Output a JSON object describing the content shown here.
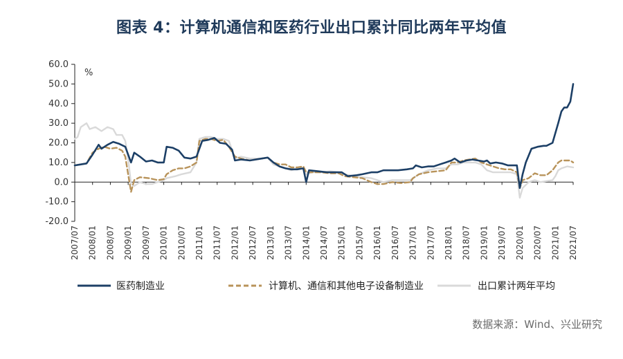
{
  "header": {
    "title": "图表 4：计算机通信和医药行业出口累计同比两年平均值"
  },
  "footer": {
    "source": "数据来源：Wind、兴业研究"
  },
  "chart_data": {
    "type": "line",
    "title": "图表 4：计算机通信和医药行业出口累计同比两年平均值",
    "ylabel": "%",
    "ylim": [
      -20,
      60
    ],
    "yticks": [
      -20,
      -10,
      0,
      10,
      20,
      30,
      40,
      50,
      60
    ],
    "ytick_labels": [
      "-20.0",
      "-10.0",
      "0.0",
      "10.0",
      "20.0",
      "30.0",
      "40.0",
      "50.0",
      "60.0"
    ],
    "xlim": [
      2007.5,
      2021.5
    ],
    "xtick_labels": [
      "2007/07",
      "2008/01",
      "2008/07",
      "2009/01",
      "2009/07",
      "2010/01",
      "2010/07",
      "2011/01",
      "2011/07",
      "2012/01",
      "2012/07",
      "2013/01",
      "2013/07",
      "2014/01",
      "2014/07",
      "2015/01",
      "2015/07",
      "2016/01",
      "2016/07",
      "2017/01",
      "2017/07",
      "2018/01",
      "2018/07",
      "2019/01",
      "2019/07",
      "2020/01",
      "2020/07",
      "2021/01",
      "2021/07"
    ],
    "legend_position": "bottom",
    "series": [
      {
        "name": "医药制造业",
        "color": "#1c3f66",
        "style": "solid",
        "points": [
          [
            2007.5,
            8.5
          ],
          [
            2007.67,
            9
          ],
          [
            2007.83,
            9.5
          ],
          [
            2008.0,
            14
          ],
          [
            2008.17,
            19
          ],
          [
            2008.25,
            17
          ],
          [
            2008.42,
            19
          ],
          [
            2008.58,
            20.5
          ],
          [
            2008.75,
            19.5
          ],
          [
            2008.92,
            18
          ],
          [
            2009.08,
            10
          ],
          [
            2009.17,
            15
          ],
          [
            2009.33,
            13
          ],
          [
            2009.5,
            10.5
          ],
          [
            2009.67,
            11
          ],
          [
            2009.83,
            10
          ],
          [
            2010.0,
            10
          ],
          [
            2010.08,
            18
          ],
          [
            2010.25,
            17.5
          ],
          [
            2010.42,
            16
          ],
          [
            2010.58,
            12.5
          ],
          [
            2010.75,
            12
          ],
          [
            2010.92,
            13
          ],
          [
            2011.08,
            21
          ],
          [
            2011.25,
            21.5
          ],
          [
            2011.42,
            22.5
          ],
          [
            2011.58,
            20
          ],
          [
            2011.75,
            19.5
          ],
          [
            2011.92,
            16.5
          ],
          [
            2012.0,
            11
          ],
          [
            2012.17,
            11.5
          ],
          [
            2012.42,
            11
          ],
          [
            2012.58,
            11.5
          ],
          [
            2012.75,
            12
          ],
          [
            2012.92,
            12.5
          ],
          [
            2013.08,
            10
          ],
          [
            2013.25,
            8
          ],
          [
            2013.42,
            7
          ],
          [
            2013.58,
            6.5
          ],
          [
            2013.75,
            6.5
          ],
          [
            2013.92,
            7
          ],
          [
            2014.0,
            0
          ],
          [
            2014.08,
            6
          ],
          [
            2014.33,
            5.5
          ],
          [
            2014.58,
            5
          ],
          [
            2014.83,
            5
          ],
          [
            2015.0,
            5
          ],
          [
            2015.17,
            3
          ],
          [
            2015.42,
            3.5
          ],
          [
            2015.58,
            4
          ],
          [
            2015.83,
            5
          ],
          [
            2016.0,
            5
          ],
          [
            2016.17,
            6
          ],
          [
            2016.42,
            6
          ],
          [
            2016.58,
            6
          ],
          [
            2016.83,
            6.5
          ],
          [
            2017.0,
            7
          ],
          [
            2017.08,
            8.5
          ],
          [
            2017.25,
            7.5
          ],
          [
            2017.42,
            8
          ],
          [
            2017.58,
            8
          ],
          [
            2017.75,
            9
          ],
          [
            2017.92,
            10
          ],
          [
            2018.08,
            11
          ],
          [
            2018.17,
            12
          ],
          [
            2018.33,
            10
          ],
          [
            2018.5,
            11
          ],
          [
            2018.67,
            11.5
          ],
          [
            2018.83,
            11
          ],
          [
            2019.0,
            10.5
          ],
          [
            2019.08,
            11
          ],
          [
            2019.17,
            9.5
          ],
          [
            2019.33,
            10
          ],
          [
            2019.5,
            9.5
          ],
          [
            2019.67,
            8.5
          ],
          [
            2019.83,
            8.5
          ],
          [
            2019.92,
            8.5
          ],
          [
            2020.0,
            -3
          ],
          [
            2020.08,
            4
          ],
          [
            2020.17,
            10
          ],
          [
            2020.33,
            17
          ],
          [
            2020.5,
            18
          ],
          [
            2020.67,
            18.5
          ],
          [
            2020.75,
            18.5
          ],
          [
            2020.92,
            20
          ],
          [
            2021.08,
            30
          ],
          [
            2021.17,
            36
          ],
          [
            2021.25,
            38
          ],
          [
            2021.33,
            38
          ],
          [
            2021.42,
            41
          ],
          [
            2021.5,
            50
          ]
        ]
      },
      {
        "name": "计算机、通信和其他电子设备制造业",
        "color": "#b8935a",
        "style": "dashed",
        "points": [
          [
            2007.5,
            8.5
          ],
          [
            2007.67,
            9
          ],
          [
            2007.83,
            9.5
          ],
          [
            2008.0,
            15
          ],
          [
            2008.17,
            17
          ],
          [
            2008.33,
            18
          ],
          [
            2008.5,
            17
          ],
          [
            2008.67,
            17.5
          ],
          [
            2008.83,
            16
          ],
          [
            2008.92,
            13
          ],
          [
            2009.0,
            4
          ],
          [
            2009.08,
            -5
          ],
          [
            2009.17,
            1
          ],
          [
            2009.33,
            2.5
          ],
          [
            2009.58,
            2
          ],
          [
            2009.83,
            1
          ],
          [
            2010.0,
            1.5
          ],
          [
            2010.08,
            4
          ],
          [
            2010.25,
            6
          ],
          [
            2010.42,
            7
          ],
          [
            2010.58,
            7
          ],
          [
            2010.75,
            8
          ],
          [
            2010.92,
            10
          ],
          [
            2011.0,
            21
          ],
          [
            2011.17,
            22
          ],
          [
            2011.33,
            22
          ],
          [
            2011.5,
            21
          ],
          [
            2011.67,
            21.5
          ],
          [
            2011.83,
            18
          ],
          [
            2012.0,
            13
          ],
          [
            2012.17,
            12
          ],
          [
            2012.42,
            11
          ],
          [
            2012.58,
            11.5
          ],
          [
            2012.75,
            12
          ],
          [
            2012.92,
            12.5
          ],
          [
            2013.08,
            10
          ],
          [
            2013.25,
            9
          ],
          [
            2013.42,
            9
          ],
          [
            2013.58,
            7.5
          ],
          [
            2013.75,
            7.5
          ],
          [
            2013.92,
            8
          ],
          [
            2014.0,
            5
          ],
          [
            2014.17,
            5
          ],
          [
            2014.42,
            5
          ],
          [
            2014.67,
            4.5
          ],
          [
            2014.92,
            4.5
          ],
          [
            2015.08,
            3
          ],
          [
            2015.33,
            2.5
          ],
          [
            2015.58,
            2
          ],
          [
            2015.83,
            0
          ],
          [
            2016.0,
            -1
          ],
          [
            2016.17,
            -1
          ],
          [
            2016.42,
            0
          ],
          [
            2016.67,
            -0.5
          ],
          [
            2016.92,
            0
          ],
          [
            2017.0,
            2
          ],
          [
            2017.17,
            4
          ],
          [
            2017.42,
            5
          ],
          [
            2017.67,
            5.5
          ],
          [
            2017.92,
            6
          ],
          [
            2018.08,
            10
          ],
          [
            2018.25,
            10
          ],
          [
            2018.42,
            11
          ],
          [
            2018.58,
            11.5
          ],
          [
            2018.75,
            12
          ],
          [
            2018.92,
            10
          ],
          [
            2019.08,
            9
          ],
          [
            2019.25,
            8
          ],
          [
            2019.42,
            7
          ],
          [
            2019.58,
            6.5
          ],
          [
            2019.75,
            6.5
          ],
          [
            2019.92,
            5
          ],
          [
            2020.0,
            -3
          ],
          [
            2020.08,
            1
          ],
          [
            2020.25,
            2
          ],
          [
            2020.42,
            4.5
          ],
          [
            2020.58,
            3.5
          ],
          [
            2020.75,
            3.5
          ],
          [
            2020.92,
            6
          ],
          [
            2021.08,
            10
          ],
          [
            2021.17,
            11
          ],
          [
            2021.33,
            11
          ],
          [
            2021.42,
            11
          ],
          [
            2021.5,
            10
          ]
        ]
      },
      {
        "name": "出口累计两年平均",
        "color": "#d9d9d9",
        "style": "solid",
        "points": [
          [
            2007.5,
            22
          ],
          [
            2007.58,
            23
          ],
          [
            2007.67,
            28
          ],
          [
            2007.83,
            30
          ],
          [
            2007.92,
            27
          ],
          [
            2008.08,
            28
          ],
          [
            2008.25,
            26
          ],
          [
            2008.42,
            28
          ],
          [
            2008.58,
            27
          ],
          [
            2008.67,
            24
          ],
          [
            2008.83,
            24
          ],
          [
            2008.92,
            21
          ],
          [
            2009.0,
            12
          ],
          [
            2009.08,
            -1
          ],
          [
            2009.17,
            -2
          ],
          [
            2009.33,
            0
          ],
          [
            2009.5,
            -1
          ],
          [
            2009.67,
            -1
          ],
          [
            2009.83,
            0
          ],
          [
            2010.0,
            1
          ],
          [
            2010.08,
            2
          ],
          [
            2010.33,
            3
          ],
          [
            2010.5,
            4
          ],
          [
            2010.75,
            5
          ],
          [
            2010.92,
            10
          ],
          [
            2011.0,
            22
          ],
          [
            2011.17,
            23
          ],
          [
            2011.33,
            23
          ],
          [
            2011.5,
            22
          ],
          [
            2011.67,
            22
          ],
          [
            2011.83,
            21
          ],
          [
            2012.0,
            12
          ],
          [
            2012.17,
            13
          ],
          [
            2012.42,
            12
          ],
          [
            2012.58,
            12
          ],
          [
            2012.75,
            12
          ],
          [
            2012.92,
            12.5
          ],
          [
            2013.08,
            9
          ],
          [
            2013.25,
            8
          ],
          [
            2013.42,
            7
          ],
          [
            2013.58,
            6
          ],
          [
            2013.75,
            7
          ],
          [
            2013.92,
            7
          ],
          [
            2014.0,
            4
          ],
          [
            2014.17,
            5
          ],
          [
            2014.42,
            5
          ],
          [
            2014.67,
            5.5
          ],
          [
            2014.92,
            5
          ],
          [
            2015.08,
            4
          ],
          [
            2015.33,
            3
          ],
          [
            2015.58,
            2.5
          ],
          [
            2015.83,
            2
          ],
          [
            2016.0,
            1
          ],
          [
            2016.17,
            0
          ],
          [
            2016.42,
            1
          ],
          [
            2016.67,
            1
          ],
          [
            2016.92,
            1
          ],
          [
            2017.0,
            2
          ],
          [
            2017.17,
            4
          ],
          [
            2017.42,
            6
          ],
          [
            2017.67,
            7
          ],
          [
            2017.92,
            7
          ],
          [
            2018.08,
            9
          ],
          [
            2018.25,
            9
          ],
          [
            2018.42,
            10
          ],
          [
            2018.58,
            10
          ],
          [
            2018.75,
            10
          ],
          [
            2018.92,
            9
          ],
          [
            2019.08,
            6
          ],
          [
            2019.25,
            5
          ],
          [
            2019.42,
            5
          ],
          [
            2019.58,
            5
          ],
          [
            2019.75,
            5
          ],
          [
            2019.92,
            4
          ],
          [
            2020.0,
            -8
          ],
          [
            2020.08,
            -3
          ],
          [
            2020.25,
            0
          ],
          [
            2020.42,
            1
          ],
          [
            2020.58,
            0
          ],
          [
            2020.75,
            0.5
          ],
          [
            2020.92,
            1
          ],
          [
            2021.0,
            3
          ],
          [
            2021.08,
            6
          ],
          [
            2021.17,
            7
          ],
          [
            2021.33,
            8
          ],
          [
            2021.5,
            7.5
          ]
        ]
      }
    ]
  }
}
